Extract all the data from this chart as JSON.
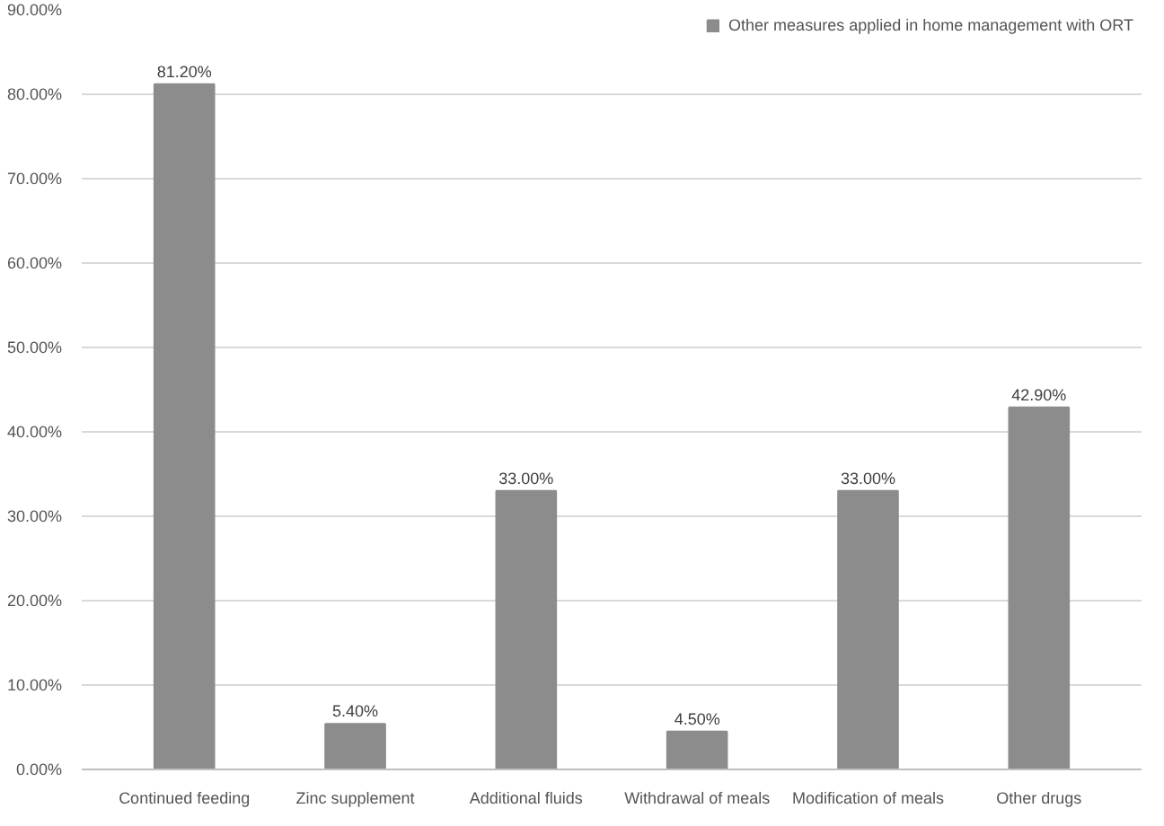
{
  "chart_data": {
    "type": "bar",
    "categories": [
      "Continued feeding",
      "Zinc supplement",
      "Additional fluids",
      "Withdrawal of meals",
      "Modification of meals",
      "Other drugs"
    ],
    "series": [
      {
        "name": "Other measures applied in home management with ORT",
        "color": "#8c8c8c",
        "values": [
          81.2,
          5.4,
          33.0,
          4.5,
          33.0,
          42.9
        ],
        "value_labels": [
          "81.20%",
          "5.40%",
          "33.00%",
          "4.50%",
          "33.00%",
          "42.90%"
        ]
      }
    ],
    "ylim": [
      0,
      90
    ],
    "yticks": [
      {
        "value": 0,
        "label": "0.00%"
      },
      {
        "value": 10,
        "label": "10.00%"
      },
      {
        "value": 20,
        "label": "20.00%"
      },
      {
        "value": 30,
        "label": "30.00%"
      },
      {
        "value": 40,
        "label": "40.00%"
      },
      {
        "value": 50,
        "label": "50.00%"
      },
      {
        "value": 60,
        "label": "60.00%"
      },
      {
        "value": 70,
        "label": "70.00%"
      },
      {
        "value": 80,
        "label": "80.00%"
      },
      {
        "value": 90,
        "label": "90.00%"
      }
    ],
    "grid": "y",
    "legend": "top right"
  }
}
